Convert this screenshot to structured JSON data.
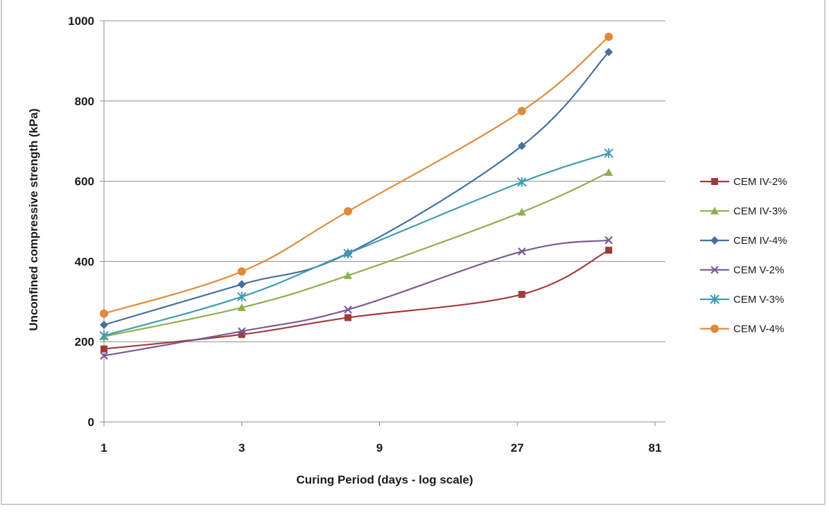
{
  "chart_data": {
    "type": "line",
    "title": "",
    "xlabel": "Curing Period (days - log scale)",
    "ylabel": "Unconfined compressive strength (kPa)",
    "x_scale": "log3",
    "xlim": [
      1,
      81
    ],
    "ylim": [
      0,
      1000
    ],
    "x_ticks": [
      1,
      3,
      9,
      27,
      81
    ],
    "x_tick_labels": [
      "1",
      "3",
      "9",
      "27",
      "81"
    ],
    "y_ticks": [
      0,
      200,
      400,
      600,
      800,
      1000
    ],
    "y_tick_labels": [
      "0",
      "200",
      "400",
      "600",
      "800",
      "1000"
    ],
    "grid": "horizontal",
    "legend": "right",
    "x": [
      1,
      3,
      7,
      28,
      56
    ],
    "series": [
      {
        "name": "CEM IV-2%",
        "marker": "square",
        "color": "#a33a3a",
        "values": [
          182,
          218,
          260,
          318,
          428
        ]
      },
      {
        "name": "CEM IV-3%",
        "marker": "triangle",
        "color": "#8db04e",
        "values": [
          213,
          285,
          365,
          523,
          622
        ]
      },
      {
        "name": "CEM IV-4%",
        "marker": "diamond",
        "color": "#456f9f",
        "values": [
          242,
          343,
          420,
          688,
          922
        ]
      },
      {
        "name": "CEM V-2%",
        "marker": "x",
        "color": "#7a5a96",
        "values": [
          165,
          226,
          280,
          425,
          453
        ]
      },
      {
        "name": "CEM V-3%",
        "marker": "star",
        "color": "#3f9bb0",
        "values": [
          215,
          312,
          420,
          598,
          670
        ]
      },
      {
        "name": "CEM V-4%",
        "marker": "circle",
        "color": "#e08a3c",
        "values": [
          270,
          375,
          525,
          775,
          960
        ]
      }
    ]
  }
}
